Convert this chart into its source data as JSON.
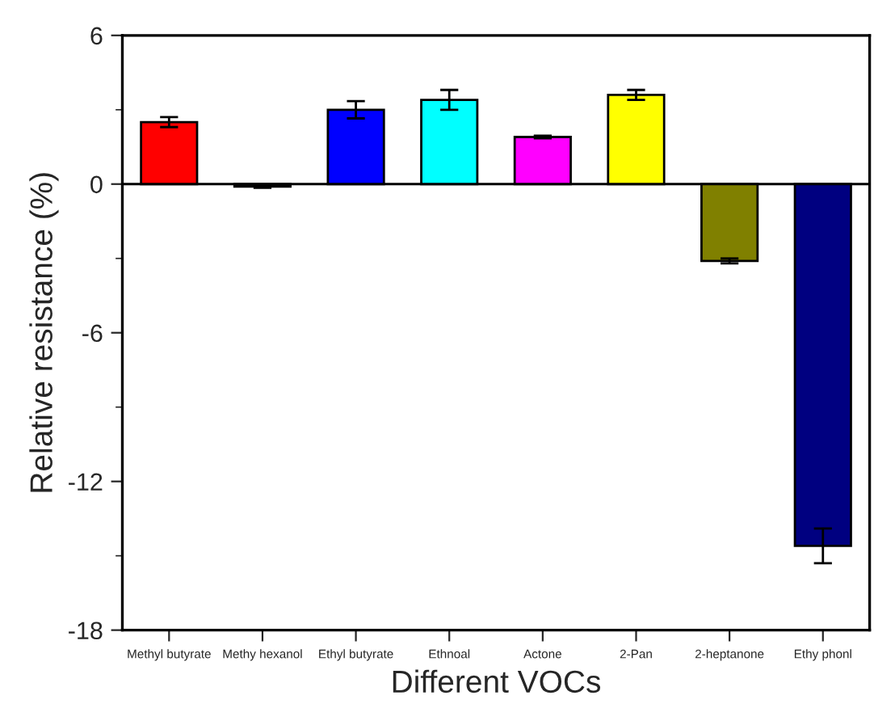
{
  "chart_data": {
    "type": "bar",
    "xlabel": "Different VOCs",
    "ylabel": "Relative resistance (%)",
    "categories": [
      "Methyl butyrate",
      "Methy hexanol",
      "Ethyl butyrate",
      "Ethnoal",
      "Actone",
      "2-Pan",
      "2-heptanone",
      "Ethy phonl"
    ],
    "values": [
      2.5,
      -0.1,
      3.0,
      3.4,
      1.9,
      3.6,
      -3.1,
      -14.6
    ],
    "errors": [
      0.2,
      0.05,
      0.35,
      0.4,
      0.05,
      0.2,
      0.1,
      0.7
    ],
    "colors": [
      "#ff0000",
      "#000000",
      "#0000ff",
      "#00ffff",
      "#ff00ff",
      "#ffff00",
      "#808000",
      "#000080"
    ],
    "ylim": [
      -18,
      6
    ],
    "yticks": [
      -18,
      -12,
      -6,
      0,
      6
    ]
  }
}
